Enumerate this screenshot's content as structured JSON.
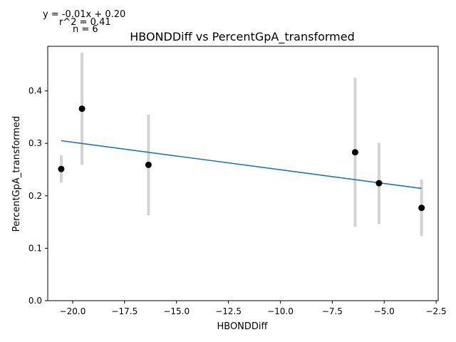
{
  "chart_data": {
    "type": "scatter",
    "title": "HBONDDiff vs PercentGpA_transformed",
    "xlabel": "HBONDDiff",
    "ylabel": "PercentGpA_transformed",
    "xlim": [
      -21.2,
      -2.4
    ],
    "ylim": [
      0.0,
      0.485
    ],
    "x_ticks": [
      -20.0,
      -17.5,
      -15.0,
      -12.5,
      -10.0,
      -7.5,
      -5.0,
      -2.5
    ],
    "x_tick_labels": [
      "−20.0",
      "−17.5",
      "−15.0",
      "−12.5",
      "−10.0",
      "−7.5",
      "−5.0",
      "−2.5"
    ],
    "y_ticks": [
      0.0,
      0.1,
      0.2,
      0.3,
      0.4
    ],
    "y_tick_labels": [
      "0.0",
      "0.1",
      "0.2",
      "0.3",
      "0.4"
    ],
    "grid": false,
    "points": [
      {
        "x": -20.55,
        "y": 0.251,
        "err_low": 0.225,
        "err_high": 0.277
      },
      {
        "x": -19.55,
        "y": 0.366,
        "err_low": 0.259,
        "err_high": 0.473
      },
      {
        "x": -16.35,
        "y": 0.259,
        "err_low": 0.163,
        "err_high": 0.355
      },
      {
        "x": -6.4,
        "y": 0.283,
        "err_low": 0.141,
        "err_high": 0.425
      },
      {
        "x": -5.25,
        "y": 0.224,
        "err_low": 0.146,
        "err_high": 0.301
      },
      {
        "x": -3.2,
        "y": 0.177,
        "err_low": 0.123,
        "err_high": 0.231
      }
    ],
    "fit_line": {
      "x": [
        -20.55,
        -3.2
      ],
      "y": [
        0.305,
        0.214
      ]
    },
    "annotations": [
      "y = -0.01x + 0.20",
      "r^2 = 0.41",
      "n = 6"
    ],
    "colors": {
      "points": "#000000",
      "error_bars": "#d3d3d3",
      "fit_line": "#1f77b4"
    }
  }
}
